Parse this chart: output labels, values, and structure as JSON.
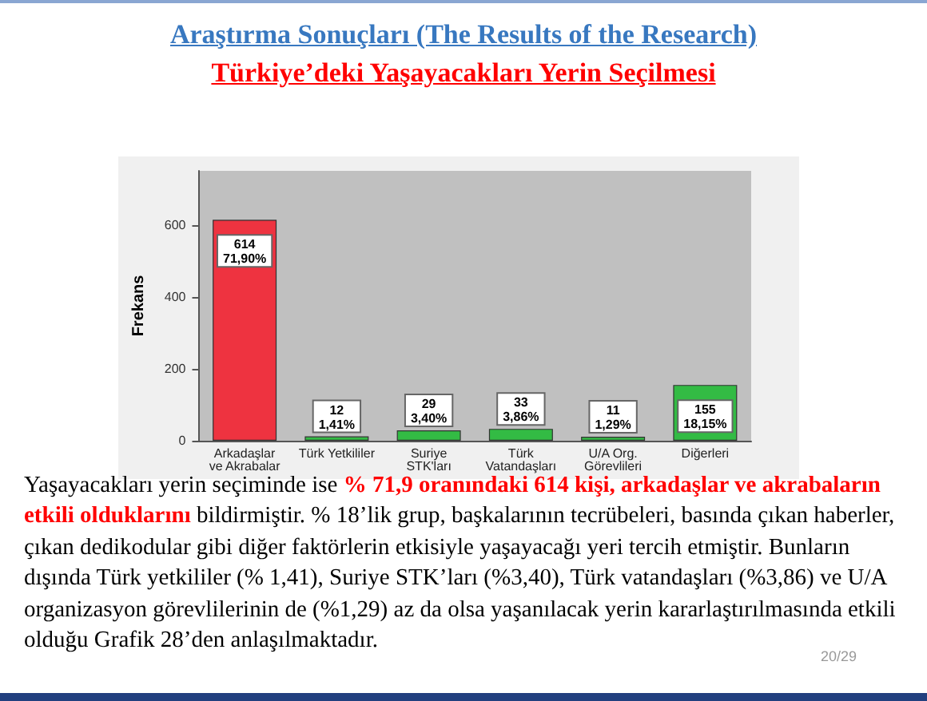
{
  "chart_data": {
    "type": "bar",
    "title": "Araştırma Sonuçları (The Results of the Research)",
    "subtitle": "Türkiye’deki Yaşayacakları Yerin Seçilmesi",
    "ylabel": "Frekans",
    "categories": [
      "Arkadaşlar\nve Akrabalar",
      "Türk Yetkililer",
      "Suriye\nSTK'ları",
      "Türk\nVatandaşları",
      "U/A Org.\nGörevlileri",
      "Diğerleri"
    ],
    "values": [
      614,
      12,
      29,
      33,
      11,
      155
    ],
    "colors": [
      "#ee3340",
      "#33bb44",
      "#33bb44",
      "#33bb44",
      "#33bb44",
      "#33bb44"
    ],
    "value_labels": [
      "614\n71,90%",
      "12\n1,41%",
      "29\n3,40%",
      "33\n3,86%",
      "11\n1,29%",
      "155\n18,15%"
    ],
    "ylim": [
      0,
      750
    ],
    "yticks": [
      0,
      200,
      400,
      600
    ],
    "annotations": [
      "Yaşayacakları yerin seçiminde ise",
      "% 71,9 oranındaki 614 kişi, arkadaşlar ve akrabaların",
      "etkili olduklarını",
      "bildirmiştir. % 18’lik grup, başkalarının tecrübeleri, basında çıkan haberler,",
      "çıkan dedikodular gibi diğer faktörlerin etkisiyle yaşayacağı yeri tercih etmiştir. Bunların dışında Türk yetkililer (% 1,41), Suriye STK’ları (%3,40), Türk vatandaşları (%3,86) ve U/A organizasyon görevlilerinin de (%1,29) az da olsa yaşanılacak yerin kararlaştırılmasında etkili olduğu Grafik 28’den anlaşılmaktadır.",
      "20/29"
    ]
  }
}
